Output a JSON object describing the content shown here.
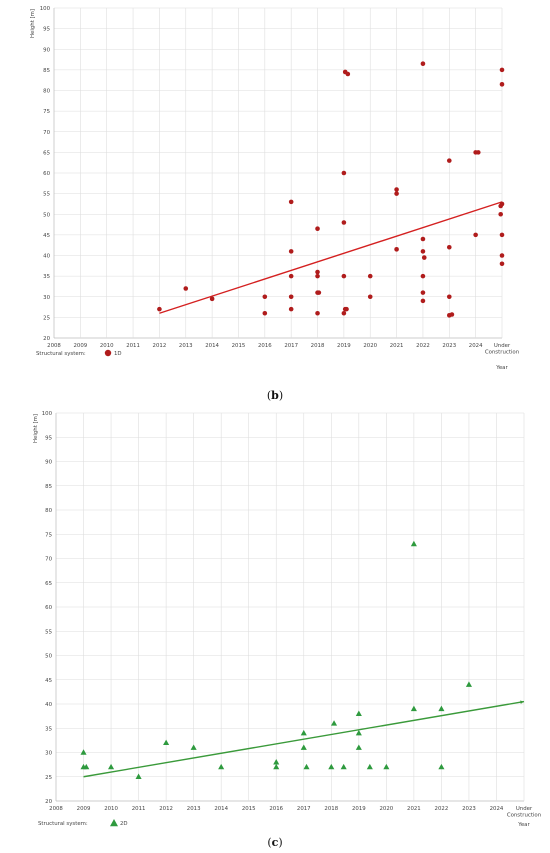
{
  "chart_data": [
    {
      "type": "scatter",
      "ylabel": "Height [m]",
      "xlabel": "Year",
      "x_categories": [
        "2008",
        "2009",
        "2010",
        "2011",
        "2012",
        "2013",
        "2014",
        "2015",
        "2016",
        "2017",
        "2018",
        "2019",
        "2020",
        "2021",
        "2022",
        "2023",
        "2024",
        "Under Construction"
      ],
      "ylim": [
        20,
        100
      ],
      "yticks": [
        20,
        25,
        30,
        35,
        40,
        45,
        50,
        55,
        60,
        65,
        70,
        75,
        80,
        85,
        90,
        95,
        100
      ],
      "grid": true,
      "legend": {
        "title": "Structural system:",
        "entries": [
          "1D"
        ],
        "position": "bottom-left"
      },
      "series": [
        {
          "name": "1D",
          "color": "#b01c1c",
          "marker": "circle",
          "points": [
            [
              2012,
              27
            ],
            [
              2013,
              32
            ],
            [
              2014,
              29.5
            ],
            [
              2016,
              26
            ],
            [
              2016,
              30
            ],
            [
              2017,
              27
            ],
            [
              2017,
              30
            ],
            [
              2017,
              35
            ],
            [
              2017,
              41
            ],
            [
              2017,
              53
            ],
            [
              2018,
              26
            ],
            [
              2018,
              31
            ],
            [
              2018.05,
              31
            ],
            [
              2018,
              35
            ],
            [
              2018,
              36
            ],
            [
              2018,
              46.5
            ],
            [
              2019,
              26
            ],
            [
              2019.05,
              27
            ],
            [
              2019.1,
              27
            ],
            [
              2019,
              35
            ],
            [
              2019,
              48
            ],
            [
              2019,
              60
            ],
            [
              2019.05,
              84.5
            ],
            [
              2019.15,
              84
            ],
            [
              2020,
              30
            ],
            [
              2020,
              35
            ],
            [
              2021,
              41.5
            ],
            [
              2021,
              55
            ],
            [
              2021,
              56
            ],
            [
              2022,
              29
            ],
            [
              2022,
              31
            ],
            [
              2022,
              35
            ],
            [
              2022.05,
              39.5
            ],
            [
              2022,
              41
            ],
            [
              2022,
              44
            ],
            [
              2022,
              86.5
            ],
            [
              2023,
              25.5
            ],
            [
              2023.1,
              25.7
            ],
            [
              2023,
              30
            ],
            [
              2023,
              42
            ],
            [
              2023,
              63
            ],
            [
              2024,
              45
            ],
            [
              2024,
              65
            ],
            [
              2024.1,
              65
            ],
            [
              2025,
              38
            ],
            [
              2025,
              40
            ],
            [
              2025,
              45
            ],
            [
              2024.95,
              50
            ],
            [
              2024.95,
              52
            ],
            [
              2025,
              52.5
            ],
            [
              2025,
              81.5
            ],
            [
              2025,
              85
            ]
          ]
        }
      ],
      "trendline": {
        "from": [
          2012,
          26
        ],
        "to": [
          2025,
          53
        ],
        "color": "#d42020"
      },
      "caption": "b"
    },
    {
      "type": "scatter",
      "ylabel": "Height [m]",
      "xlabel": "Year",
      "x_categories": [
        "2008",
        "2009",
        "2010",
        "2011",
        "2012",
        "2013",
        "2014",
        "2015",
        "2016",
        "2017",
        "2018",
        "2019",
        "2020",
        "2021",
        "2022",
        "2023",
        "2024",
        "Under Construction"
      ],
      "ylim": [
        20,
        100
      ],
      "yticks": [
        20,
        25,
        30,
        35,
        40,
        45,
        50,
        55,
        60,
        65,
        70,
        75,
        80,
        85,
        90,
        95,
        100
      ],
      "grid": true,
      "legend": {
        "title": "Structural system:",
        "entries": [
          "2D"
        ],
        "position": "bottom-left"
      },
      "series": [
        {
          "name": "2D",
          "color": "#2e9a3e",
          "marker": "triangle",
          "points": [
            [
              2009,
              30
            ],
            [
              2009,
              27
            ],
            [
              2009.1,
              27
            ],
            [
              2010,
              27
            ],
            [
              2011,
              25
            ],
            [
              2012,
              32
            ],
            [
              2013,
              31
            ],
            [
              2014,
              27
            ],
            [
              2016,
              28
            ],
            [
              2016,
              27
            ],
            [
              2017,
              34
            ],
            [
              2017,
              31
            ],
            [
              2017.1,
              27
            ],
            [
              2018,
              27
            ],
            [
              2018.1,
              36
            ],
            [
              2018.45,
              27
            ],
            [
              2019,
              38
            ],
            [
              2019,
              34
            ],
            [
              2019,
              31
            ],
            [
              2019.4,
              27
            ],
            [
              2020,
              27
            ],
            [
              2021,
              73
            ],
            [
              2021,
              39
            ],
            [
              2022,
              39
            ],
            [
              2022,
              27
            ],
            [
              2023,
              44
            ]
          ]
        }
      ],
      "trendline": {
        "from": [
          2009,
          25
        ],
        "to": [
          2025,
          40.5
        ],
        "color": "#3a9a3a"
      },
      "caption": "c"
    }
  ]
}
